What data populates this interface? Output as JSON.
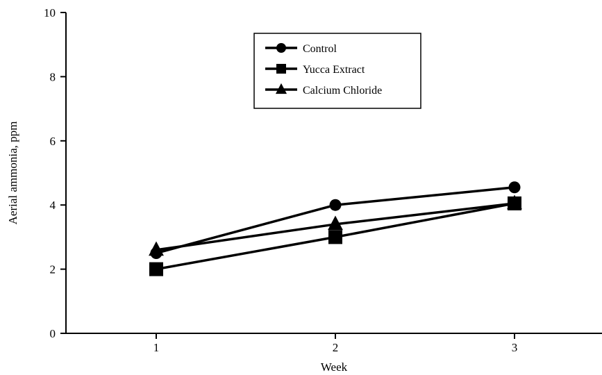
{
  "chart_data": {
    "type": "line",
    "x": [
      1,
      2,
      3
    ],
    "xlabel": "Week",
    "ylabel": "Aerial ammonia, ppm",
    "ylim": [
      0,
      10
    ],
    "yticks": [
      0,
      2,
      4,
      6,
      8,
      10
    ],
    "xticks": [
      1,
      2,
      3
    ],
    "grid": false,
    "legend_position": "top-center",
    "series": [
      {
        "name": "Control",
        "marker": "circle",
        "values": [
          2.5,
          4.0,
          4.55
        ]
      },
      {
        "name": "Yucca Extract",
        "marker": "square",
        "values": [
          2.0,
          3.0,
          4.05
        ]
      },
      {
        "name": "Calcium Chloride",
        "marker": "triangle",
        "values": [
          2.6,
          3.4,
          4.05
        ]
      }
    ],
    "colors": {
      "line": "#000000",
      "background": "#ffffff"
    }
  }
}
